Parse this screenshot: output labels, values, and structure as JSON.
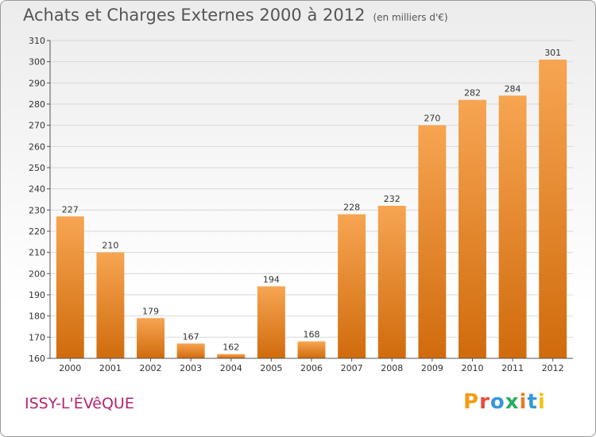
{
  "header": {
    "title": "Achats et Charges Externes 2000 à 2012",
    "subtitle": "(en milliers d'€)"
  },
  "footer": {
    "commune": "ISSY-L'ÉVêQUE",
    "logo": {
      "letters": [
        "P",
        "r",
        "o",
        "x",
        "i",
        "t",
        "i"
      ],
      "colors": [
        "#f39c12",
        "#e74c3c",
        "#3498db",
        "#27ae60",
        "#e67e22",
        "#3498db",
        "#f1c40f"
      ]
    }
  },
  "colors": {
    "bar_top": "#f7a552",
    "bar_bottom": "#d06b0c",
    "grid": "#d8d8d8"
  },
  "chart_data": {
    "type": "bar",
    "title": "Achats et Charges Externes 2000 à 2012",
    "subtitle": "(en milliers d'€)",
    "categories": [
      "2000",
      "2001",
      "2002",
      "2003",
      "2004",
      "2005",
      "2006",
      "2007",
      "2008",
      "2009",
      "2010",
      "2011",
      "2012"
    ],
    "values": [
      227,
      210,
      179,
      167,
      162,
      194,
      168,
      228,
      232,
      270,
      282,
      284,
      301
    ],
    "ylim": [
      160,
      310
    ],
    "yticks": [
      160,
      170,
      180,
      190,
      200,
      210,
      220,
      230,
      240,
      250,
      260,
      270,
      280,
      290,
      300,
      310
    ],
    "grid": true,
    "data_labels": true
  }
}
